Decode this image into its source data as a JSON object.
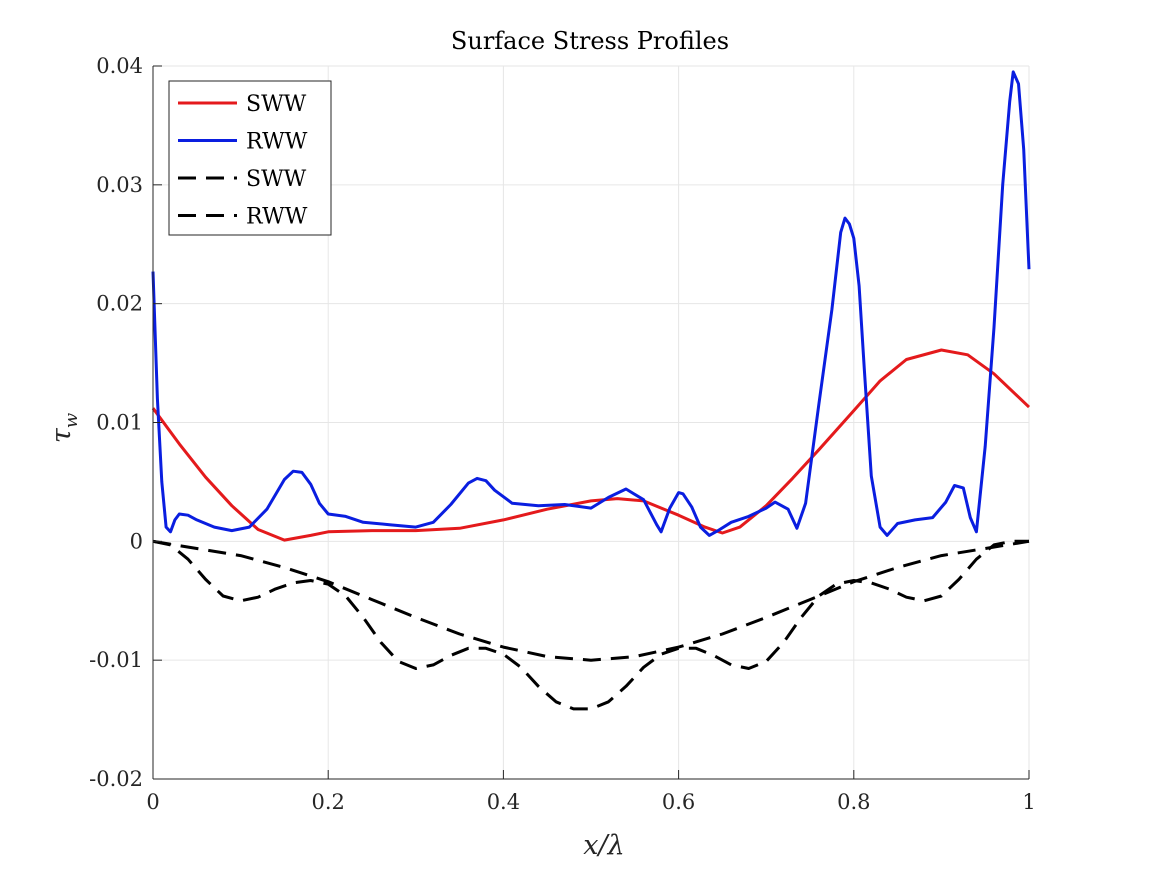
{
  "chart_data": {
    "type": "line",
    "title": "Surface Stress Profiles",
    "xlabel": "x/λ",
    "ylabel": "τ",
    "ylabel_subscript": "w",
    "xlim": [
      0,
      1
    ],
    "ylim": [
      -0.02,
      0.04
    ],
    "xticks": [
      0,
      0.2,
      0.4,
      0.6,
      0.8,
      1
    ],
    "xtick_labels": [
      "0",
      "0.2",
      "0.4",
      "0.6",
      "0.8",
      "1"
    ],
    "yticks": [
      -0.02,
      -0.01,
      0,
      0.01,
      0.02,
      0.03,
      0.04
    ],
    "ytick_labels": [
      "-0.02",
      "-0.01",
      "0",
      "0.01",
      "0.02",
      "0.03",
      "0.04"
    ],
    "grid": true,
    "legend_position": "top-left",
    "series": [
      {
        "name": "SWW",
        "color": "#e41a1c",
        "style": "solid",
        "x": [
          0,
          0.03,
          0.06,
          0.09,
          0.12,
          0.15,
          0.18,
          0.2,
          0.25,
          0.3,
          0.35,
          0.4,
          0.45,
          0.5,
          0.53,
          0.56,
          0.6,
          0.63,
          0.65,
          0.67,
          0.7,
          0.73,
          0.76,
          0.8,
          0.83,
          0.86,
          0.9,
          0.93,
          0.96,
          1.0
        ],
        "y": [
          0.0112,
          0.0082,
          0.0054,
          0.003,
          0.001,
          0.0001,
          0.0005,
          0.0008,
          0.0009,
          0.0009,
          0.0011,
          0.0018,
          0.0027,
          0.0034,
          0.0036,
          0.0034,
          0.0022,
          0.0012,
          0.0007,
          0.0012,
          0.003,
          0.0053,
          0.0077,
          0.011,
          0.0135,
          0.0153,
          0.0161,
          0.0157,
          0.0141,
          0.0113
        ]
      },
      {
        "name": "RWW",
        "color": "#0a1ee0",
        "style": "solid",
        "x": [
          0,
          0.005,
          0.01,
          0.015,
          0.02,
          0.025,
          0.03,
          0.04,
          0.05,
          0.07,
          0.09,
          0.11,
          0.13,
          0.15,
          0.16,
          0.17,
          0.18,
          0.19,
          0.2,
          0.22,
          0.24,
          0.27,
          0.3,
          0.32,
          0.34,
          0.36,
          0.37,
          0.38,
          0.39,
          0.41,
          0.44,
          0.47,
          0.5,
          0.52,
          0.54,
          0.56,
          0.575,
          0.58,
          0.59,
          0.6,
          0.605,
          0.615,
          0.625,
          0.635,
          0.645,
          0.66,
          0.68,
          0.7,
          0.71,
          0.725,
          0.735,
          0.745,
          0.76,
          0.775,
          0.785,
          0.79,
          0.795,
          0.8,
          0.806,
          0.812,
          0.82,
          0.83,
          0.838,
          0.85,
          0.87,
          0.89,
          0.905,
          0.915,
          0.925,
          0.933,
          0.94,
          0.95,
          0.96,
          0.97,
          0.978,
          0.982,
          0.988,
          0.994,
          1.0
        ],
        "y": [
          0.0227,
          0.012,
          0.005,
          0.0012,
          0.0008,
          0.0018,
          0.0023,
          0.0022,
          0.0018,
          0.0012,
          0.0009,
          0.0012,
          0.0027,
          0.0052,
          0.0059,
          0.0058,
          0.0048,
          0.0032,
          0.0023,
          0.0021,
          0.0016,
          0.0014,
          0.0012,
          0.0016,
          0.0031,
          0.0049,
          0.0053,
          0.0051,
          0.0043,
          0.0032,
          0.003,
          0.0031,
          0.0028,
          0.0037,
          0.0044,
          0.0035,
          0.0014,
          0.0008,
          0.0028,
          0.0041,
          0.004,
          0.0029,
          0.0012,
          0.0005,
          0.0009,
          0.0016,
          0.0021,
          0.0028,
          0.0033,
          0.0027,
          0.0011,
          0.0032,
          0.0115,
          0.0195,
          0.026,
          0.0272,
          0.0267,
          0.0255,
          0.0215,
          0.0145,
          0.0055,
          0.0012,
          0.0005,
          0.0015,
          0.0018,
          0.002,
          0.0033,
          0.0047,
          0.0045,
          0.002,
          0.0008,
          0.008,
          0.018,
          0.03,
          0.037,
          0.0395,
          0.0385,
          0.033,
          0.0229
        ]
      },
      {
        "name": "SWW",
        "color": "#000000",
        "style": "dashed",
        "x": [
          0,
          0.05,
          0.1,
          0.15,
          0.2,
          0.25,
          0.3,
          0.35,
          0.4,
          0.45,
          0.5,
          0.55,
          0.6,
          0.65,
          0.7,
          0.75,
          0.8,
          0.85,
          0.9,
          0.95,
          1.0
        ],
        "y": [
          0,
          -0.0006,
          -0.0012,
          -0.0022,
          -0.0034,
          -0.0049,
          -0.0064,
          -0.0078,
          -0.0089,
          -0.0097,
          -0.01,
          -0.0097,
          -0.0089,
          -0.0078,
          -0.0064,
          -0.0049,
          -0.0034,
          -0.0022,
          -0.0012,
          -0.0006,
          0
        ]
      },
      {
        "name": "RWW",
        "color": "#000000",
        "style": "dashed",
        "x": [
          0,
          0.02,
          0.04,
          0.06,
          0.08,
          0.1,
          0.12,
          0.14,
          0.16,
          0.18,
          0.2,
          0.22,
          0.24,
          0.26,
          0.28,
          0.3,
          0.32,
          0.34,
          0.36,
          0.38,
          0.4,
          0.42,
          0.44,
          0.46,
          0.48,
          0.5,
          0.52,
          0.54,
          0.56,
          0.58,
          0.6,
          0.62,
          0.64,
          0.66,
          0.68,
          0.7,
          0.72,
          0.74,
          0.76,
          0.78,
          0.8,
          0.82,
          0.84,
          0.86,
          0.88,
          0.9,
          0.92,
          0.94,
          0.96,
          0.98,
          1.0
        ],
        "y": [
          0,
          -0.0003,
          -0.0015,
          -0.0032,
          -0.0046,
          -0.005,
          -0.0047,
          -0.004,
          -0.0035,
          -0.0033,
          -0.0036,
          -0.0046,
          -0.0064,
          -0.0085,
          -0.0101,
          -0.0107,
          -0.0104,
          -0.0096,
          -0.009,
          -0.009,
          -0.0095,
          -0.0106,
          -0.0122,
          -0.0135,
          -0.0141,
          -0.0141,
          -0.0135,
          -0.0122,
          -0.0106,
          -0.0095,
          -0.009,
          -0.009,
          -0.0096,
          -0.0104,
          -0.0107,
          -0.0101,
          -0.0085,
          -0.0064,
          -0.0046,
          -0.0036,
          -0.0033,
          -0.0035,
          -0.004,
          -0.0047,
          -0.005,
          -0.0046,
          -0.0032,
          -0.0015,
          -0.0003,
          0,
          0
        ]
      }
    ]
  }
}
